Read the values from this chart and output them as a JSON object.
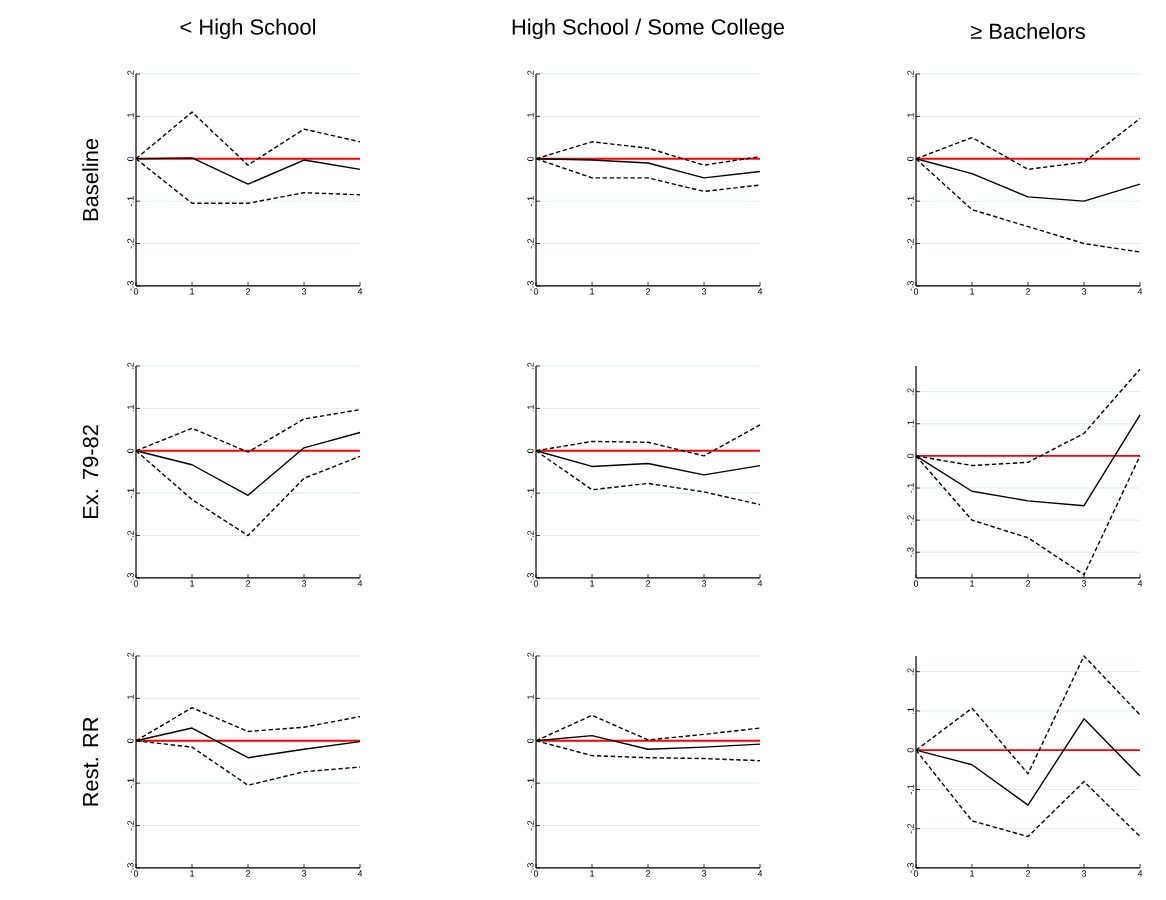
{
  "chart_data": [
    {
      "type": "line",
      "title": "< High School",
      "ylabel": "Baseline",
      "x": [
        0,
        1,
        2,
        3,
        4
      ],
      "xlim": [
        0,
        4
      ],
      "xticks": [
        0,
        1,
        2,
        3,
        4
      ],
      "ylim": [
        -0.3,
        0.2
      ],
      "yticks": [
        {
          "value": -0.3,
          "label": "-.3"
        },
        {
          "value": -0.2,
          "label": "-.2"
        },
        {
          "value": -0.1,
          "label": "-.1"
        },
        0,
        {
          "value": 0.1,
          "label": ".1"
        },
        {
          "value": 0.2,
          "label": ".2"
        }
      ],
      "grid": "y",
      "ref_lines": [
        {
          "axis": "y",
          "value": 0,
          "color": "#ff0000"
        }
      ],
      "series": [
        {
          "color": "#000000",
          "line_style": "solid",
          "values": [
            0,
            0.002,
            -0.06,
            -0.003,
            -0.025
          ]
        },
        {
          "color": "#000000",
          "line_style": "dashed",
          "values": [
            0,
            0.11,
            -0.015,
            0.07,
            0.04
          ]
        },
        {
          "color": "#000000",
          "line_style": "dashed",
          "values": [
            0,
            -0.105,
            -0.105,
            -0.08,
            -0.085
          ]
        }
      ]
    },
    {
      "type": "line",
      "title": "High School / Some College",
      "x": [
        0,
        1,
        2,
        3,
        4
      ],
      "xlim": [
        0,
        4
      ],
      "xticks": [
        0,
        1,
        2,
        3,
        4
      ],
      "ylim": [
        -0.3,
        0.2
      ],
      "yticks": [
        {
          "value": -0.3,
          "label": "-.3"
        },
        {
          "value": -0.2,
          "label": "-.2"
        },
        {
          "value": -0.1,
          "label": "-.1"
        },
        0,
        {
          "value": 0.1,
          "label": ".1"
        },
        {
          "value": 0.2,
          "label": ".2"
        }
      ],
      "grid": "y",
      "ref_lines": [
        {
          "axis": "y",
          "value": 0,
          "color": "#ff0000"
        }
      ],
      "series": [
        {
          "color": "#000000",
          "line_style": "solid",
          "values": [
            0,
            -0.003,
            -0.01,
            -0.045,
            -0.03
          ]
        },
        {
          "color": "#000000",
          "line_style": "dashed",
          "values": [
            0,
            0.04,
            0.025,
            -0.015,
            0.005
          ]
        },
        {
          "color": "#000000",
          "line_style": "dashed",
          "values": [
            0,
            -0.045,
            -0.045,
            -0.077,
            -0.062
          ]
        }
      ]
    },
    {
      "type": "line",
      "title": "≥ Bachelors",
      "x": [
        0,
        1,
        2,
        3,
        4
      ],
      "xlim": [
        0,
        4
      ],
      "xticks": [
        0,
        1,
        2,
        3,
        4
      ],
      "ylim": [
        -0.3,
        0.2
      ],
      "yticks": [
        {
          "value": -0.3,
          "label": "-.3"
        },
        {
          "value": -0.2,
          "label": "-.2"
        },
        {
          "value": -0.1,
          "label": "-.1"
        },
        0,
        {
          "value": 0.1,
          "label": ".1"
        },
        {
          "value": 0.2,
          "label": ".2"
        }
      ],
      "grid": "y",
      "ref_lines": [
        {
          "axis": "y",
          "value": 0,
          "color": "#ff0000"
        }
      ],
      "series": [
        {
          "color": "#000000",
          "line_style": "solid",
          "values": [
            0,
            -0.035,
            -0.09,
            -0.1,
            -0.06
          ]
        },
        {
          "color": "#000000",
          "line_style": "dashed",
          "values": [
            0,
            0.05,
            -0.025,
            -0.008,
            0.095
          ]
        },
        {
          "color": "#000000",
          "line_style": "dashed",
          "values": [
            0,
            -0.12,
            -0.16,
            -0.2,
            -0.22
          ]
        }
      ]
    },
    {
      "type": "line",
      "ylabel": "Ex. 79-82",
      "x": [
        0,
        1,
        2,
        3,
        4
      ],
      "xlim": [
        0,
        4
      ],
      "xticks": [
        0,
        1,
        2,
        3,
        4
      ],
      "ylim": [
        -0.3,
        0.2
      ],
      "yticks": [
        {
          "value": -0.3,
          "label": "-.3"
        },
        {
          "value": -0.2,
          "label": "-.2"
        },
        {
          "value": -0.1,
          "label": "-.1"
        },
        0,
        {
          "value": 0.1,
          "label": ".1"
        },
        {
          "value": 0.2,
          "label": ".2"
        }
      ],
      "grid": "y",
      "ref_lines": [
        {
          "axis": "y",
          "value": 0,
          "color": "#ff0000"
        }
      ],
      "series": [
        {
          "color": "#000000",
          "line_style": "solid",
          "values": [
            0,
            -0.033,
            -0.105,
            0.007,
            0.043
          ]
        },
        {
          "color": "#000000",
          "line_style": "dashed",
          "values": [
            0,
            0.053,
            -0.003,
            0.075,
            0.097
          ]
        },
        {
          "color": "#000000",
          "line_style": "dashed",
          "values": [
            0,
            -0.115,
            -0.2,
            -0.065,
            -0.013
          ]
        }
      ]
    },
    {
      "type": "line",
      "x": [
        0,
        1,
        2,
        3,
        4
      ],
      "xlim": [
        0,
        4
      ],
      "xticks": [
        0,
        1,
        2,
        3,
        4
      ],
      "ylim": [
        -0.3,
        0.2
      ],
      "yticks": [
        {
          "value": -0.3,
          "label": "-.3"
        },
        {
          "value": -0.2,
          "label": "-.2"
        },
        {
          "value": -0.1,
          "label": "-.1"
        },
        0,
        {
          "value": 0.1,
          "label": ".1"
        },
        {
          "value": 0.2,
          "label": ".2"
        }
      ],
      "grid": "y",
      "ref_lines": [
        {
          "axis": "y",
          "value": 0,
          "color": "#ff0000"
        }
      ],
      "series": [
        {
          "color": "#000000",
          "line_style": "solid",
          "values": [
            0,
            -0.037,
            -0.03,
            -0.057,
            -0.035
          ]
        },
        {
          "color": "#000000",
          "line_style": "dashed",
          "values": [
            0,
            0.022,
            0.02,
            -0.012,
            0.061
          ]
        },
        {
          "color": "#000000",
          "line_style": "dashed",
          "values": [
            0,
            -0.092,
            -0.077,
            -0.097,
            -0.127
          ]
        }
      ]
    },
    {
      "type": "line",
      "x": [
        0,
        1,
        2,
        3,
        4
      ],
      "xlim": [
        0,
        4
      ],
      "xticks": [
        0,
        1,
        2,
        3,
        4
      ],
      "ylim": [
        -0.38,
        0.28
      ],
      "yticks": [
        {
          "value": -0.3,
          "label": "-.3"
        },
        {
          "value": -0.2,
          "label": "-.2"
        },
        {
          "value": -0.1,
          "label": "-.1"
        },
        0,
        {
          "value": 0.1,
          "label": ".1"
        },
        {
          "value": 0.2,
          "label": ".2"
        }
      ],
      "grid": "y",
      "ref_lines": [
        {
          "axis": "y",
          "value": 0,
          "color": "#ff0000"
        }
      ],
      "series": [
        {
          "color": "#000000",
          "line_style": "solid",
          "values": [
            0,
            -0.11,
            -0.14,
            -0.155,
            0.128
          ]
        },
        {
          "color": "#000000",
          "line_style": "dashed",
          "values": [
            0,
            -0.03,
            -0.02,
            0.07,
            0.27
          ]
        },
        {
          "color": "#000000",
          "line_style": "dashed",
          "values": [
            0,
            -0.2,
            -0.255,
            -0.37,
            0
          ]
        }
      ]
    },
    {
      "type": "line",
      "ylabel": "Rest. RR",
      "x": [
        0,
        1,
        2,
        3,
        4
      ],
      "xlim": [
        0,
        4
      ],
      "xticks": [
        0,
        1,
        2,
        3,
        4
      ],
      "ylim": [
        -0.3,
        0.2
      ],
      "yticks": [
        {
          "value": -0.3,
          "label": "-.3"
        },
        {
          "value": -0.2,
          "label": "-.2"
        },
        {
          "value": -0.1,
          "label": "-.1"
        },
        0,
        {
          "value": 0.1,
          "label": ".1"
        },
        {
          "value": 0.2,
          "label": ".2"
        }
      ],
      "grid": "y",
      "ref_lines": [
        {
          "axis": "y",
          "value": 0,
          "color": "#ff0000"
        }
      ],
      "series": [
        {
          "color": "#000000",
          "line_style": "solid",
          "values": [
            0,
            0.03,
            -0.04,
            -0.02,
            -0.002
          ]
        },
        {
          "color": "#000000",
          "line_style": "dashed",
          "values": [
            0,
            0.078,
            0.022,
            0.032,
            0.057
          ]
        },
        {
          "color": "#000000",
          "line_style": "dashed",
          "values": [
            0,
            -0.015,
            -0.105,
            -0.073,
            -0.062
          ]
        }
      ]
    },
    {
      "type": "line",
      "x": [
        0,
        1,
        2,
        3,
        4
      ],
      "xlim": [
        0,
        4
      ],
      "xticks": [
        0,
        1,
        2,
        3,
        4
      ],
      "ylim": [
        -0.3,
        0.2
      ],
      "yticks": [
        {
          "value": -0.3,
          "label": "-.3"
        },
        {
          "value": -0.2,
          "label": "-.2"
        },
        {
          "value": -0.1,
          "label": "-.1"
        },
        0,
        {
          "value": 0.1,
          "label": ".1"
        },
        {
          "value": 0.2,
          "label": ".2"
        }
      ],
      "grid": "y",
      "ref_lines": [
        {
          "axis": "y",
          "value": 0,
          "color": "#ff0000"
        }
      ],
      "series": [
        {
          "color": "#000000",
          "line_style": "solid",
          "values": [
            0,
            0.012,
            -0.02,
            -0.015,
            -0.008
          ]
        },
        {
          "color": "#000000",
          "line_style": "dashed",
          "values": [
            0,
            0.06,
            0.002,
            0.015,
            0.03
          ]
        },
        {
          "color": "#000000",
          "line_style": "dashed",
          "values": [
            0,
            -0.035,
            -0.04,
            -0.042,
            -0.047
          ]
        }
      ]
    },
    {
      "type": "line",
      "x": [
        0,
        1,
        2,
        3,
        4
      ],
      "xlim": [
        0,
        4
      ],
      "xticks": [
        0,
        1,
        2,
        3,
        4
      ],
      "ylim": [
        -0.3,
        0.24
      ],
      "yticks": [
        {
          "value": -0.3,
          "label": "-.3"
        },
        {
          "value": -0.2,
          "label": "-.2"
        },
        {
          "value": -0.1,
          "label": "-.1"
        },
        0,
        {
          "value": 0.1,
          "label": ".1"
        },
        {
          "value": 0.2,
          "label": ".2"
        }
      ],
      "grid": "y",
      "ref_lines": [
        {
          "axis": "y",
          "value": 0,
          "color": "#ff0000"
        }
      ],
      "series": [
        {
          "color": "#000000",
          "line_style": "solid",
          "values": [
            0,
            -0.037,
            -0.14,
            0.08,
            -0.066
          ]
        },
        {
          "color": "#000000",
          "line_style": "dashed",
          "values": [
            0,
            0.107,
            -0.06,
            0.24,
            0.09
          ]
        },
        {
          "color": "#000000",
          "line_style": "dashed",
          "values": [
            0,
            -0.18,
            -0.22,
            -0.08,
            -0.22
          ]
        }
      ]
    }
  ]
}
